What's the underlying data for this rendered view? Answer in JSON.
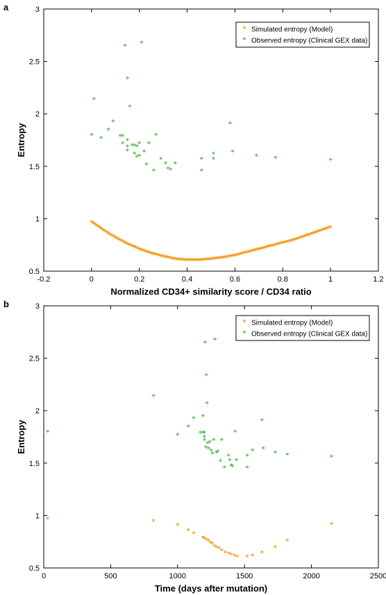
{
  "colors": {
    "simulated": "#F39C1F",
    "observed": "#4DB848"
  },
  "chart_data": [
    {
      "panel_label": "a",
      "type": "scatter",
      "xlabel": "Normalized CD34+ similarity score / CD34 ratio",
      "ylabel": "Entropy",
      "xlim": [
        -0.2,
        1.2
      ],
      "ylim": [
        0.5,
        3
      ],
      "xticks": [
        -0.2,
        0,
        0.2,
        0.4,
        0.6,
        0.8,
        1,
        1.2
      ],
      "xtick_labels": [
        "-0.2",
        "0",
        "0.2",
        "0.4",
        "0.6",
        "0.8",
        "1",
        "1.2"
      ],
      "yticks": [
        0.5,
        1,
        1.5,
        2,
        2.5,
        3
      ],
      "ytick_labels": [
        "0.5",
        "1",
        "1.5",
        "2",
        "2.5",
        "3"
      ],
      "legend_position": "top-right",
      "series": [
        {
          "name": "Simulated entropy (Model)",
          "color": "#F39C1F",
          "dense_curve": true,
          "points": [
            [
              0.0,
              0.96
            ],
            [
              0.05,
              0.88
            ],
            [
              0.1,
              0.81
            ],
            [
              0.15,
              0.75
            ],
            [
              0.2,
              0.7
            ],
            [
              0.25,
              0.66
            ],
            [
              0.3,
              0.63
            ],
            [
              0.35,
              0.605
            ],
            [
              0.4,
              0.595
            ],
            [
              0.45,
              0.595
            ],
            [
              0.5,
              0.605
            ],
            [
              0.55,
              0.62
            ],
            [
              0.6,
              0.64
            ],
            [
              0.65,
              0.67
            ],
            [
              0.7,
              0.7
            ],
            [
              0.75,
              0.73
            ],
            [
              0.8,
              0.76
            ],
            [
              0.85,
              0.79
            ],
            [
              0.9,
              0.83
            ],
            [
              0.95,
              0.87
            ],
            [
              1.0,
              0.91
            ]
          ]
        },
        {
          "name": "Observed entropy (Clinical GEX data)",
          "color": "#4DB848",
          "points": [
            [
              0.0,
              1.79
            ],
            [
              0.01,
              2.13
            ],
            [
              0.04,
              1.76
            ],
            [
              0.07,
              1.84
            ],
            [
              0.09,
              1.92
            ],
            [
              0.12,
              1.78
            ],
            [
              0.13,
              1.78
            ],
            [
              0.13,
              1.71
            ],
            [
              0.14,
              2.64
            ],
            [
              0.15,
              1.74
            ],
            [
              0.15,
              1.68
            ],
            [
              0.15,
              1.64
            ],
            [
              0.15,
              2.33
            ],
            [
              0.16,
              2.06
            ],
            [
              0.17,
              1.69
            ],
            [
              0.18,
              1.61
            ],
            [
              0.18,
              1.69
            ],
            [
              0.19,
              1.68
            ],
            [
              0.19,
              1.58
            ],
            [
              0.2,
              1.71
            ],
            [
              0.2,
              1.59
            ],
            [
              0.21,
              2.67
            ],
            [
              0.22,
              1.63
            ],
            [
              0.23,
              1.51
            ],
            [
              0.24,
              1.71
            ],
            [
              0.26,
              1.45
            ],
            [
              0.27,
              1.79
            ],
            [
              0.29,
              1.56
            ],
            [
              0.31,
              1.52
            ],
            [
              0.32,
              1.47
            ],
            [
              0.33,
              1.46
            ],
            [
              0.35,
              1.52
            ],
            [
              0.46,
              1.45
            ],
            [
              0.46,
              1.56
            ],
            [
              0.51,
              1.56
            ],
            [
              0.51,
              1.61
            ],
            [
              0.58,
              1.9
            ],
            [
              0.59,
              1.63
            ],
            [
              0.69,
              1.59
            ],
            [
              0.77,
              1.57
            ],
            [
              1.0,
              1.55
            ]
          ]
        }
      ]
    },
    {
      "panel_label": "b",
      "type": "scatter",
      "xlabel": "Time (days after mutation)",
      "ylabel": "Entropy",
      "xlim": [
        0,
        2500
      ],
      "ylim": [
        0.5,
        3
      ],
      "xticks": [
        0,
        500,
        1000,
        1500,
        2000,
        2500
      ],
      "xtick_labels": [
        "0",
        "500",
        "1000",
        "1500",
        "2000",
        "2500"
      ],
      "yticks": [
        0.5,
        1,
        1.5,
        2,
        2.5,
        3
      ],
      "ytick_labels": [
        "0.5",
        "1",
        "1.5",
        "2",
        "2.5",
        "3"
      ],
      "legend_position": "top-right",
      "series": [
        {
          "name": "Simulated entropy (Model)",
          "color": "#F39C1F",
          "points": [
            [
              30,
              0.96
            ],
            [
              820,
              0.94
            ],
            [
              1000,
              0.9
            ],
            [
              1080,
              0.85
            ],
            [
              1120,
              0.82
            ],
            [
              1190,
              0.78
            ],
            [
              1200,
              0.77
            ],
            [
              1215,
              0.76
            ],
            [
              1230,
              0.75
            ],
            [
              1245,
              0.73
            ],
            [
              1260,
              0.72
            ],
            [
              1275,
              0.7
            ],
            [
              1290,
              0.69
            ],
            [
              1310,
              0.68
            ],
            [
              1330,
              0.66
            ],
            [
              1355,
              0.64
            ],
            [
              1380,
              0.63
            ],
            [
              1400,
              0.62
            ],
            [
              1425,
              0.61
            ],
            [
              1445,
              0.6
            ],
            [
              1520,
              0.6
            ],
            [
              1560,
              0.61
            ],
            [
              1630,
              0.64
            ],
            [
              1730,
              0.69
            ],
            [
              1820,
              0.75
            ],
            [
              2150,
              0.91
            ]
          ]
        },
        {
          "name": "Observed entropy (Clinical GEX data)",
          "color": "#4DB848",
          "points": [
            [
              30,
              1.79
            ],
            [
              820,
              2.13
            ],
            [
              1000,
              1.76
            ],
            [
              1080,
              1.84
            ],
            [
              1120,
              1.92
            ],
            [
              1170,
              1.78
            ],
            [
              1190,
              1.78
            ],
            [
              1190,
              1.94
            ],
            [
              1200,
              1.71
            ],
            [
              1200,
              1.78
            ],
            [
              1200,
              1.74
            ],
            [
              1205,
              2.64
            ],
            [
              1210,
              1.64
            ],
            [
              1215,
              2.33
            ],
            [
              1220,
              2.06
            ],
            [
              1225,
              1.68
            ],
            [
              1230,
              1.63
            ],
            [
              1240,
              1.69
            ],
            [
              1250,
              1.61
            ],
            [
              1260,
              1.58
            ],
            [
              1270,
              1.71
            ],
            [
              1280,
              2.67
            ],
            [
              1290,
              1.59
            ],
            [
              1300,
              1.6
            ],
            [
              1320,
              1.51
            ],
            [
              1330,
              1.71
            ],
            [
              1350,
              1.45
            ],
            [
              1380,
              1.56
            ],
            [
              1390,
              1.52
            ],
            [
              1400,
              1.47
            ],
            [
              1410,
              1.46
            ],
            [
              1430,
              1.79
            ],
            [
              1440,
              1.52
            ],
            [
              1520,
              1.45
            ],
            [
              1520,
              1.56
            ],
            [
              1560,
              1.61
            ],
            [
              1630,
              1.9
            ],
            [
              1640,
              1.63
            ],
            [
              1730,
              1.59
            ],
            [
              1820,
              1.57
            ],
            [
              2150,
              1.55
            ]
          ]
        }
      ]
    }
  ]
}
